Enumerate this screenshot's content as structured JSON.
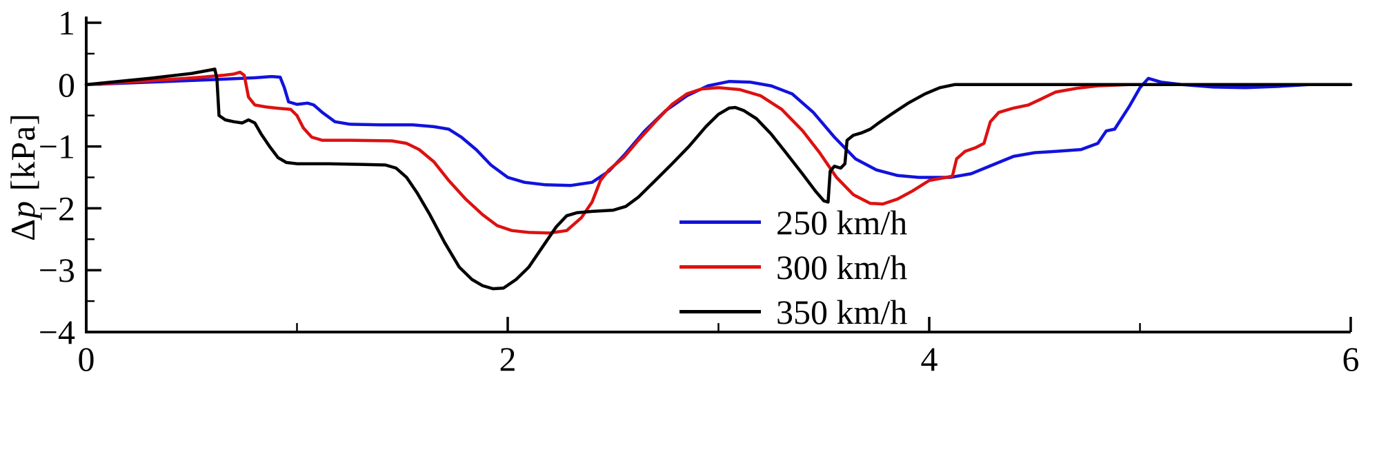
{
  "chart_data": {
    "type": "line",
    "title": "",
    "xlabel": "",
    "ylabel": "Δp [kPa]",
    "y_label_delta": "Δ",
    "y_label_var": "p",
    "y_label_unit": " [kPa]",
    "grid": false,
    "legend_position": "center-right-lower",
    "x_axis": {
      "range": [
        0,
        6
      ],
      "major_ticks": [
        {
          "value": 0,
          "label": "0"
        },
        {
          "value": 2,
          "label": "2"
        },
        {
          "value": 4,
          "label": "4"
        },
        {
          "value": 6,
          "label": "6"
        }
      ],
      "minor_ticks": [
        1,
        3,
        5
      ]
    },
    "y_axis": {
      "range": [
        -4,
        1
      ],
      "major_ticks": [
        {
          "value": 1,
          "label": "1"
        },
        {
          "value": 0,
          "label": "0"
        },
        {
          "value": -1,
          "label": "−1"
        },
        {
          "value": -2,
          "label": "−2"
        },
        {
          "value": -3,
          "label": "−3"
        },
        {
          "value": -4,
          "label": "−4"
        }
      ],
      "minor_ticks": [
        0.5,
        -0.5,
        -1.5,
        -2.5,
        -3.5
      ]
    },
    "axis_color": "#000000",
    "series": [
      {
        "name": "250 km/h",
        "color": "#1212dd",
        "points": [
          [
            0,
            0
          ],
          [
            0.3,
            0.04
          ],
          [
            0.6,
            0.08
          ],
          [
            0.8,
            0.11
          ],
          [
            0.88,
            0.13
          ],
          [
            0.92,
            0.12
          ],
          [
            0.94,
            -0.05
          ],
          [
            0.96,
            -0.28
          ],
          [
            1.0,
            -0.32
          ],
          [
            1.05,
            -0.3
          ],
          [
            1.08,
            -0.33
          ],
          [
            1.12,
            -0.45
          ],
          [
            1.18,
            -0.6
          ],
          [
            1.25,
            -0.64
          ],
          [
            1.4,
            -0.65
          ],
          [
            1.55,
            -0.65
          ],
          [
            1.65,
            -0.68
          ],
          [
            1.72,
            -0.72
          ],
          [
            1.78,
            -0.85
          ],
          [
            1.85,
            -1.05
          ],
          [
            1.92,
            -1.3
          ],
          [
            2.0,
            -1.5
          ],
          [
            2.08,
            -1.58
          ],
          [
            2.18,
            -1.62
          ],
          [
            2.3,
            -1.63
          ],
          [
            2.4,
            -1.58
          ],
          [
            2.48,
            -1.4
          ],
          [
            2.55,
            -1.15
          ],
          [
            2.65,
            -0.75
          ],
          [
            2.75,
            -0.42
          ],
          [
            2.85,
            -0.18
          ],
          [
            2.95,
            -0.02
          ],
          [
            3.05,
            0.05
          ],
          [
            3.15,
            0.04
          ],
          [
            3.25,
            -0.02
          ],
          [
            3.35,
            -0.15
          ],
          [
            3.45,
            -0.45
          ],
          [
            3.55,
            -0.85
          ],
          [
            3.65,
            -1.2
          ],
          [
            3.75,
            -1.38
          ],
          [
            3.85,
            -1.47
          ],
          [
            3.95,
            -1.5
          ],
          [
            4.1,
            -1.5
          ],
          [
            4.2,
            -1.44
          ],
          [
            4.3,
            -1.3
          ],
          [
            4.4,
            -1.16
          ],
          [
            4.5,
            -1.1
          ],
          [
            4.6,
            -1.08
          ],
          [
            4.72,
            -1.05
          ],
          [
            4.8,
            -0.95
          ],
          [
            4.84,
            -0.75
          ],
          [
            4.88,
            -0.72
          ],
          [
            4.95,
            -0.35
          ],
          [
            5.0,
            -0.05
          ],
          [
            5.04,
            0.1
          ],
          [
            5.1,
            0.04
          ],
          [
            5.2,
            0.0
          ],
          [
            5.35,
            -0.04
          ],
          [
            5.5,
            -0.05
          ],
          [
            5.65,
            -0.03
          ],
          [
            5.8,
            0
          ],
          [
            6,
            0
          ]
        ]
      },
      {
        "name": "300 km/h",
        "color": "#dd1111",
        "points": [
          [
            0,
            0
          ],
          [
            0.3,
            0.06
          ],
          [
            0.55,
            0.12
          ],
          [
            0.65,
            0.15
          ],
          [
            0.7,
            0.17
          ],
          [
            0.73,
            0.2
          ],
          [
            0.75,
            0.15
          ],
          [
            0.77,
            -0.2
          ],
          [
            0.8,
            -0.33
          ],
          [
            0.85,
            -0.36
          ],
          [
            0.9,
            -0.38
          ],
          [
            0.97,
            -0.4
          ],
          [
            1.0,
            -0.5
          ],
          [
            1.03,
            -0.7
          ],
          [
            1.07,
            -0.85
          ],
          [
            1.12,
            -0.9
          ],
          [
            1.25,
            -0.9
          ],
          [
            1.45,
            -0.91
          ],
          [
            1.52,
            -0.95
          ],
          [
            1.58,
            -1.05
          ],
          [
            1.65,
            -1.25
          ],
          [
            1.72,
            -1.55
          ],
          [
            1.8,
            -1.85
          ],
          [
            1.88,
            -2.1
          ],
          [
            1.95,
            -2.28
          ],
          [
            2.02,
            -2.36
          ],
          [
            2.1,
            -2.39
          ],
          [
            2.2,
            -2.4
          ],
          [
            2.28,
            -2.36
          ],
          [
            2.35,
            -2.15
          ],
          [
            2.4,
            -1.9
          ],
          [
            2.44,
            -1.55
          ],
          [
            2.48,
            -1.38
          ],
          [
            2.55,
            -1.18
          ],
          [
            2.62,
            -0.9
          ],
          [
            2.7,
            -0.6
          ],
          [
            2.78,
            -0.32
          ],
          [
            2.85,
            -0.15
          ],
          [
            2.92,
            -0.07
          ],
          [
            3.0,
            -0.05
          ],
          [
            3.1,
            -0.08
          ],
          [
            3.2,
            -0.18
          ],
          [
            3.3,
            -0.4
          ],
          [
            3.4,
            -0.75
          ],
          [
            3.48,
            -1.1
          ],
          [
            3.56,
            -1.5
          ],
          [
            3.64,
            -1.78
          ],
          [
            3.72,
            -1.92
          ],
          [
            3.78,
            -1.93
          ],
          [
            3.85,
            -1.85
          ],
          [
            3.92,
            -1.72
          ],
          [
            4.0,
            -1.55
          ],
          [
            4.08,
            -1.5
          ],
          [
            4.11,
            -1.48
          ],
          [
            4.13,
            -1.2
          ],
          [
            4.17,
            -1.08
          ],
          [
            4.22,
            -1.02
          ],
          [
            4.26,
            -0.95
          ],
          [
            4.29,
            -0.6
          ],
          [
            4.33,
            -0.45
          ],
          [
            4.4,
            -0.38
          ],
          [
            4.47,
            -0.33
          ],
          [
            4.52,
            -0.25
          ],
          [
            4.6,
            -0.12
          ],
          [
            4.7,
            -0.06
          ],
          [
            4.8,
            -0.02
          ],
          [
            4.95,
            0
          ],
          [
            6,
            0
          ]
        ]
      },
      {
        "name": "350 km/h",
        "color": "#000000",
        "points": [
          [
            0,
            0
          ],
          [
            0.3,
            0.1
          ],
          [
            0.5,
            0.18
          ],
          [
            0.58,
            0.23
          ],
          [
            0.61,
            0.25
          ],
          [
            0.62,
            0.1
          ],
          [
            0.63,
            -0.5
          ],
          [
            0.66,
            -0.57
          ],
          [
            0.7,
            -0.6
          ],
          [
            0.74,
            -0.62
          ],
          [
            0.77,
            -0.57
          ],
          [
            0.8,
            -0.62
          ],
          [
            0.83,
            -0.8
          ],
          [
            0.87,
            -1.0
          ],
          [
            0.91,
            -1.18
          ],
          [
            0.95,
            -1.26
          ],
          [
            1.0,
            -1.28
          ],
          [
            1.15,
            -1.28
          ],
          [
            1.3,
            -1.29
          ],
          [
            1.42,
            -1.3
          ],
          [
            1.47,
            -1.35
          ],
          [
            1.52,
            -1.5
          ],
          [
            1.57,
            -1.75
          ],
          [
            1.63,
            -2.1
          ],
          [
            1.7,
            -2.55
          ],
          [
            1.77,
            -2.95
          ],
          [
            1.83,
            -3.15
          ],
          [
            1.88,
            -3.25
          ],
          [
            1.93,
            -3.3
          ],
          [
            1.98,
            -3.29
          ],
          [
            2.04,
            -3.15
          ],
          [
            2.1,
            -2.95
          ],
          [
            2.17,
            -2.6
          ],
          [
            2.23,
            -2.3
          ],
          [
            2.28,
            -2.12
          ],
          [
            2.33,
            -2.07
          ],
          [
            2.4,
            -2.05
          ],
          [
            2.5,
            -2.03
          ],
          [
            2.56,
            -1.97
          ],
          [
            2.62,
            -1.82
          ],
          [
            2.7,
            -1.55
          ],
          [
            2.78,
            -1.28
          ],
          [
            2.86,
            -1.0
          ],
          [
            2.94,
            -0.68
          ],
          [
            3.0,
            -0.48
          ],
          [
            3.05,
            -0.38
          ],
          [
            3.08,
            -0.37
          ],
          [
            3.12,
            -0.42
          ],
          [
            3.18,
            -0.55
          ],
          [
            3.25,
            -0.8
          ],
          [
            3.32,
            -1.1
          ],
          [
            3.4,
            -1.45
          ],
          [
            3.46,
            -1.72
          ],
          [
            3.5,
            -1.88
          ],
          [
            3.52,
            -1.9
          ],
          [
            3.53,
            -1.4
          ],
          [
            3.55,
            -1.32
          ],
          [
            3.58,
            -1.35
          ],
          [
            3.6,
            -1.28
          ],
          [
            3.61,
            -0.9
          ],
          [
            3.64,
            -0.82
          ],
          [
            3.68,
            -0.78
          ],
          [
            3.72,
            -0.72
          ],
          [
            3.76,
            -0.62
          ],
          [
            3.82,
            -0.48
          ],
          [
            3.9,
            -0.3
          ],
          [
            3.98,
            -0.15
          ],
          [
            4.05,
            -0.05
          ],
          [
            4.12,
            0
          ],
          [
            6,
            0
          ]
        ]
      }
    ]
  }
}
